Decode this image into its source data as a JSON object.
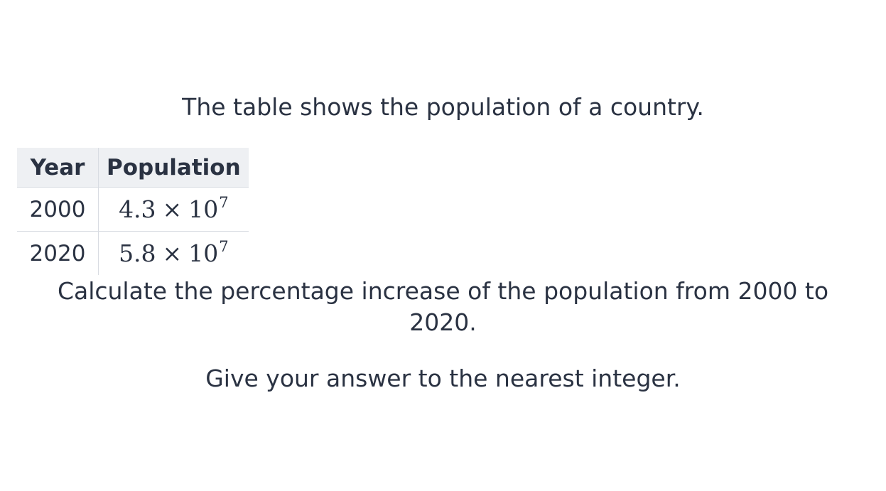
{
  "intro_text": "The table shows the population of a country.",
  "table": {
    "headers": [
      "Year",
      "Population"
    ],
    "rows": [
      {
        "year": "2000",
        "mantissa": "4.3",
        "times": "×",
        "base": "10",
        "exponent": "7"
      },
      {
        "year": "2020",
        "mantissa": "5.8",
        "times": "×",
        "base": "10",
        "exponent": "7"
      }
    ]
  },
  "question_text": "Calculate the percentage increase of the population from 2000 to 2020.",
  "instruction_text": "Give your answer to the nearest integer."
}
